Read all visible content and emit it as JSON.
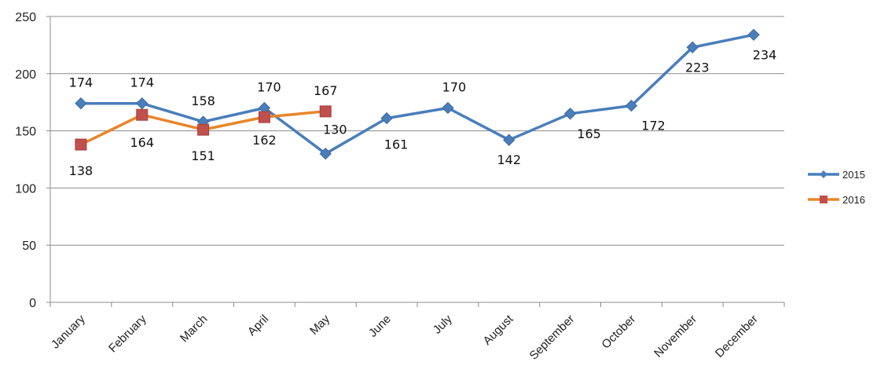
{
  "chart_data": {
    "type": "line",
    "categories": [
      "January",
      "February",
      "March",
      "April",
      "May",
      "June",
      "July",
      "August",
      "September",
      "October",
      "November",
      "December"
    ],
    "series": [
      {
        "name": "2015",
        "values": [
          174,
          174,
          158,
          170,
          130,
          161,
          170,
          142,
          165,
          172,
          223,
          234
        ],
        "color": "#4a7ebb",
        "marker": "diamond"
      },
      {
        "name": "2016",
        "values": [
          138,
          164,
          151,
          162,
          167,
          null,
          null,
          null,
          null,
          null,
          null,
          null
        ],
        "color": "#e8862a",
        "marker_color": "#c0504d",
        "marker": "square"
      }
    ],
    "ylim": [
      0,
      250
    ],
    "yticks": [
      0,
      50,
      100,
      150,
      200,
      250
    ],
    "grid": true,
    "legend": "right"
  }
}
